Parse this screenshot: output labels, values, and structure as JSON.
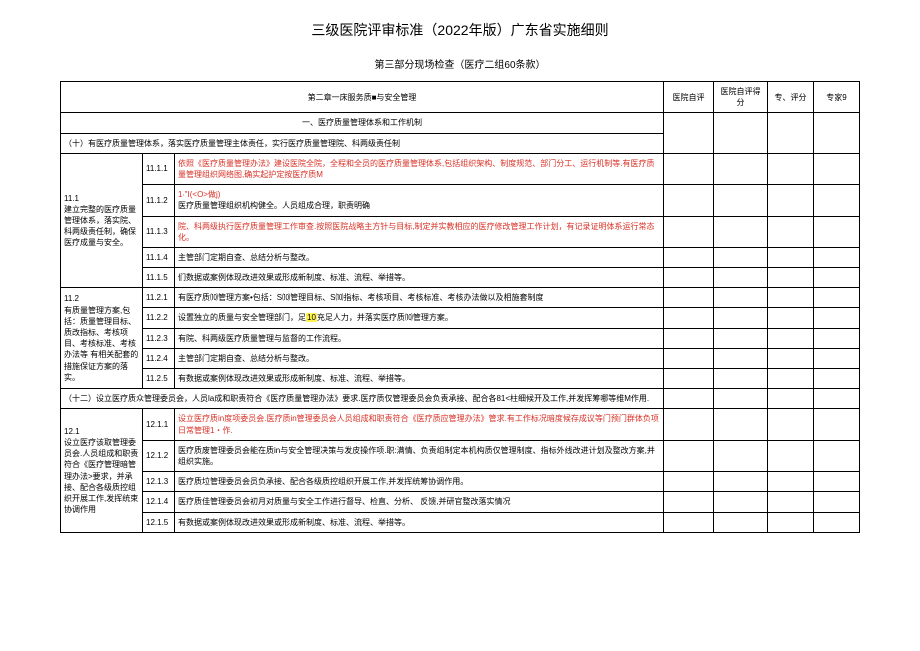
{
  "title": "三级医院评审标准（2022年版）广东省实施细则",
  "subtitle": "第三部分现场检查（医疗二组60条款）",
  "header": {
    "c1": "第二章一床服务质■与安全管理",
    "c2": "医院自评",
    "c3": "医院自评得分",
    "c4": "专、评分",
    "c5": "专家9"
  },
  "section1_title": "一、医疗质量管理体系和工作机制",
  "item1_1": "（十）有医疗质量管理体系，落实医疗质量管理主体责任，实行医疗质量管理院、科两级责任制",
  "g1": {
    "code": "11.1",
    "text": "建立完整的医疗质量管理体系，落实院、科两级责任制，确保医疗成量与安全。"
  },
  "r1": {
    "c": "11.1.1",
    "t1": "依照《医疗质量管理办法》建设医院全院，全程和全员的医疗质量管理体系,包括组织架构、制度规范、部门分工、运行机制等.有医疗质量管理组织网络图,确实起护定按医疗质M"
  },
  "r2": {
    "c": "11.1.2",
    "t1": "1∙\"I(<O>做j)",
    "t2": "医疗质量管理组织机构健全。人员组成合理，职责明确"
  },
  "r3": {
    "c": "11.1.3",
    "t": "院、科两级执行医疗质量管理工作审查.按照医院战略主方针与目标,制定并实教相应的医疗修改管理工作计划，有记录证明体系运行常态化。"
  },
  "r4": {
    "c": "11.1.4",
    "t": "主管部门定期自查、总结分析与整改。"
  },
  "r5": {
    "c": "11.1.5",
    "t": "们数据或案例体现改进效果或形成新制度、标准、流程、举措等。"
  },
  "g2": {
    "code": "11.2",
    "text": "有质量管理方案,包括：质量管理目标、质改指标、考核项目、考核标准、考核办法等 有相关配套的措施保证方案的落实。"
  },
  "r6": {
    "c": "11.2.1",
    "t": "有医疗质⑽管理方案•包括：S⑽管理目标、S⑽指标、考核项目、考核标准、考核办法做以及相施套制度"
  },
  "r7": {
    "c": "11.2.2",
    "t1": "设置独立的质量与安全管理部门，足",
    "t_hl": "10",
    "t2": "充足人力，并落实医疗质⑽管理方案。"
  },
  "r8": {
    "c": "11.2.3",
    "t": "有院、科两级医疗质量管理与监督的工作流程。"
  },
  "r9": {
    "c": "11.2.4",
    "t": "主管部门定期自查、总结分析与整改。"
  },
  "r10": {
    "c": "11.2.5",
    "t": "有数据或案例体现改进效果或形成新制度、标准、流程、举措等。"
  },
  "item1_2": "（十二）设立医疗质众管理委员会，人员la成和职责符合《医疗质量管理办法》要求.医疗质仅管理委员会负责承接、配合各81<柱细候开及工作,并发挥筹哪等维M作用.",
  "g3": {
    "code": "12.1",
    "text": "设立医疗该取管理委员会.人员组成和职责符合《医疗管理暗管理办法>要求，并承接、配合各级质控组织开展工作,发挥统束协调作用"
  },
  "r11": {
    "c": "12.1.1",
    "t": "设立医疗质in度项委员会.医疗质in管理委员会人员组成和职责符合《医疗质应管理办法》管求.有工作标况暗度候存成议等门预门群体负项日常管理1・作."
  },
  "r12": {
    "c": "12.1.2",
    "t": "医疗质废管理委员会能在质in与安全管理决策与发皮操作项.职:满情、负责组制定本机构质仅管理制度、指标外线改进计划及整改方案,并组织实施。"
  },
  "r13": {
    "c": "12.1.3",
    "t": "医疗质垃管理委员会员负承接、配合各级质控组织开展工作,并发挥统筹协调作用。"
  },
  "r14": {
    "c": "12.1.4",
    "t": "医疗质佳管理委员会初月对质量与安全工作进行督导、检直、分析、 反馈,并研官整改落实情况"
  },
  "r15": {
    "c": "12.1.5",
    "t": "有数据或案例体现改进效果或形成新制度、标准、流程、举措等。"
  }
}
